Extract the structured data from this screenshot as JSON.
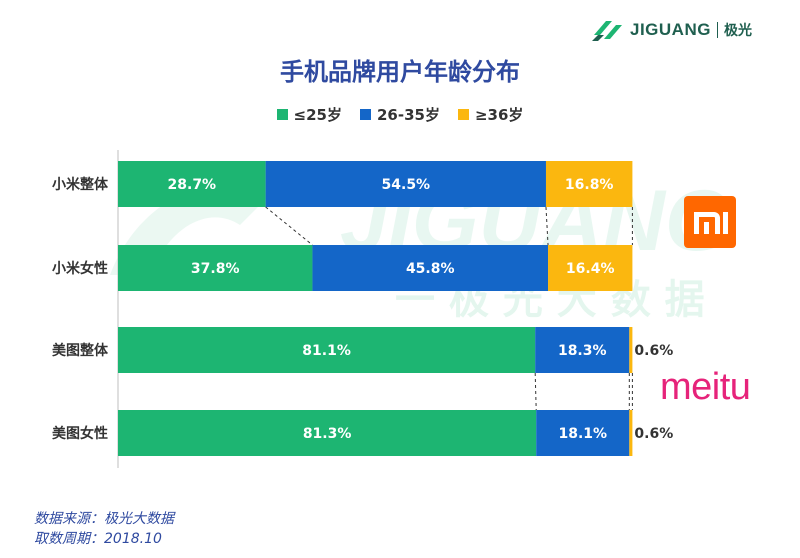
{
  "brand": {
    "name": "JIGUANG",
    "name_cn": "极光"
  },
  "watermark": {
    "text": "JIGUANG",
    "subtext": "一 极 光 大 数 据"
  },
  "chart_data": {
    "type": "bar",
    "stacked": true,
    "orientation": "horizontal",
    "title": "手机品牌用户年龄分布",
    "categories": [
      "小米整体",
      "小米女性",
      "美图整体",
      "美图女性"
    ],
    "series": [
      {
        "name": "≤25岁",
        "color": "#1db572",
        "values": [
          28.7,
          37.8,
          81.1,
          81.3
        ],
        "labels": [
          "28.7%",
          "37.8%",
          "81.1%",
          "81.3%"
        ]
      },
      {
        "name": "26-35岁",
        "color": "#1466c8",
        "values": [
          54.5,
          45.8,
          18.3,
          18.1
        ],
        "labels": [
          "54.5%",
          "45.8%",
          "18.3%",
          "18.1%"
        ]
      },
      {
        "name": "≥36岁",
        "color": "#fbb70f",
        "values": [
          16.8,
          16.4,
          0.6,
          0.6
        ],
        "labels": [
          "16.8%",
          "16.4%",
          "0.6%",
          "0.6%"
        ]
      }
    ],
    "xlim": [
      0,
      100
    ],
    "legend": "top-center"
  },
  "logos": {
    "xiaomi_icon": "mi-logo",
    "meitu": "meitu"
  },
  "footer": {
    "source": "数据来源：极光大数据",
    "period": "取数周期：2018.10"
  }
}
